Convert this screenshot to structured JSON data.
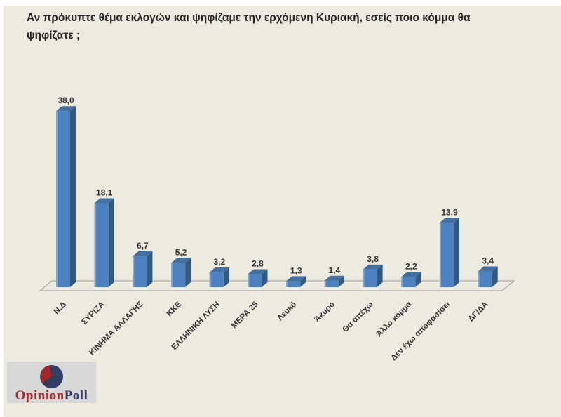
{
  "page": {
    "background": "#FFFFFF",
    "slide_background": "#EDEADF"
  },
  "title": "Αν πρόκυπτε θέμα εκλογών και ψηφίζαμε την ερχόμενη Κυριακή, εσείς ποιο κόμμα θα ψηφίζατε ;",
  "chart_data": {
    "type": "bar",
    "style": "3d-column",
    "title": "Αν πρόκυπτε θέμα εκλογών και ψηφίζαμε την ερχόμενη Κυριακή, εσείς ποιο κόμμα θα ψηφίζατε ;",
    "categories": [
      "Ν.Δ",
      "ΣΥΡΙΖΑ",
      "ΚΙΝΗΜΑ ΑΛΛΑΓΗΣ",
      "ΚΚΕ",
      "ΕΛΛΗΝΙΚΗ ΛΥΣΗ",
      "ΜΕΡΑ 25",
      "Λευκό",
      "Άκυρο",
      "Θα απέχω",
      "Άλλο κόμμα",
      "Δεν έχω αποφασίσει",
      "ΔΓ/ΔΑ"
    ],
    "values": [
      38.0,
      18.1,
      6.7,
      5.2,
      3.2,
      2.8,
      1.3,
      1.4,
      3.8,
      2.2,
      13.9,
      3.4
    ],
    "value_labels": [
      "38,0",
      "18,1",
      "6,7",
      "5,2",
      "3,2",
      "2,8",
      "1,3",
      "1,4",
      "3,8",
      "2,2",
      "13,9",
      "3,4"
    ],
    "ylim": [
      0,
      40
    ],
    "grid": false,
    "legend": false,
    "data_labels": true,
    "xlabel": "",
    "ylabel": ""
  },
  "colors": {
    "bar_front": "#4D80BE",
    "bar_top": "#44709F",
    "bar_side": "#34587E",
    "bar_highlight": "#7EA6D8",
    "floor_line": "#9B9B9B",
    "label_text": "#333333",
    "value_text": "#333333",
    "title_text": "#262626"
  },
  "logo": {
    "name": "OpinionPoll",
    "text_primary": "Opinion",
    "text_secondary": "Poll",
    "box_background": "#D8D8D8",
    "red": "#9E2B2F",
    "navy": "#323E62"
  }
}
